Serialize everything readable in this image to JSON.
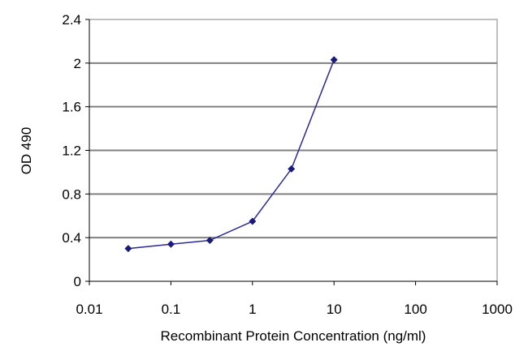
{
  "chart_data": {
    "type": "scatter",
    "x_scale": "log",
    "xlabel": "Recombinant Protein Concentration (ng/ml)",
    "ylabel": "OD 490",
    "xlim": [
      0.01,
      1000
    ],
    "ylim": [
      0,
      2.4
    ],
    "x_ticks": [
      "0.01",
      "0.1",
      "1",
      "10",
      "100",
      "1000"
    ],
    "y_ticks": [
      "0",
      "0.4",
      "0.8",
      "1.2",
      "1.6",
      "2",
      "2.4"
    ],
    "grid": "horizontal",
    "series": [
      {
        "x": [
          0.03,
          0.1,
          0.3,
          1,
          3,
          10
        ],
        "y": [
          0.3,
          0.34,
          0.375,
          0.55,
          1.03,
          2.03
        ]
      }
    ],
    "colors": {
      "plot_background": "#ffffff",
      "gridline": "#808080",
      "series": "#2a2a96",
      "marker": "#1a1a7a"
    }
  }
}
